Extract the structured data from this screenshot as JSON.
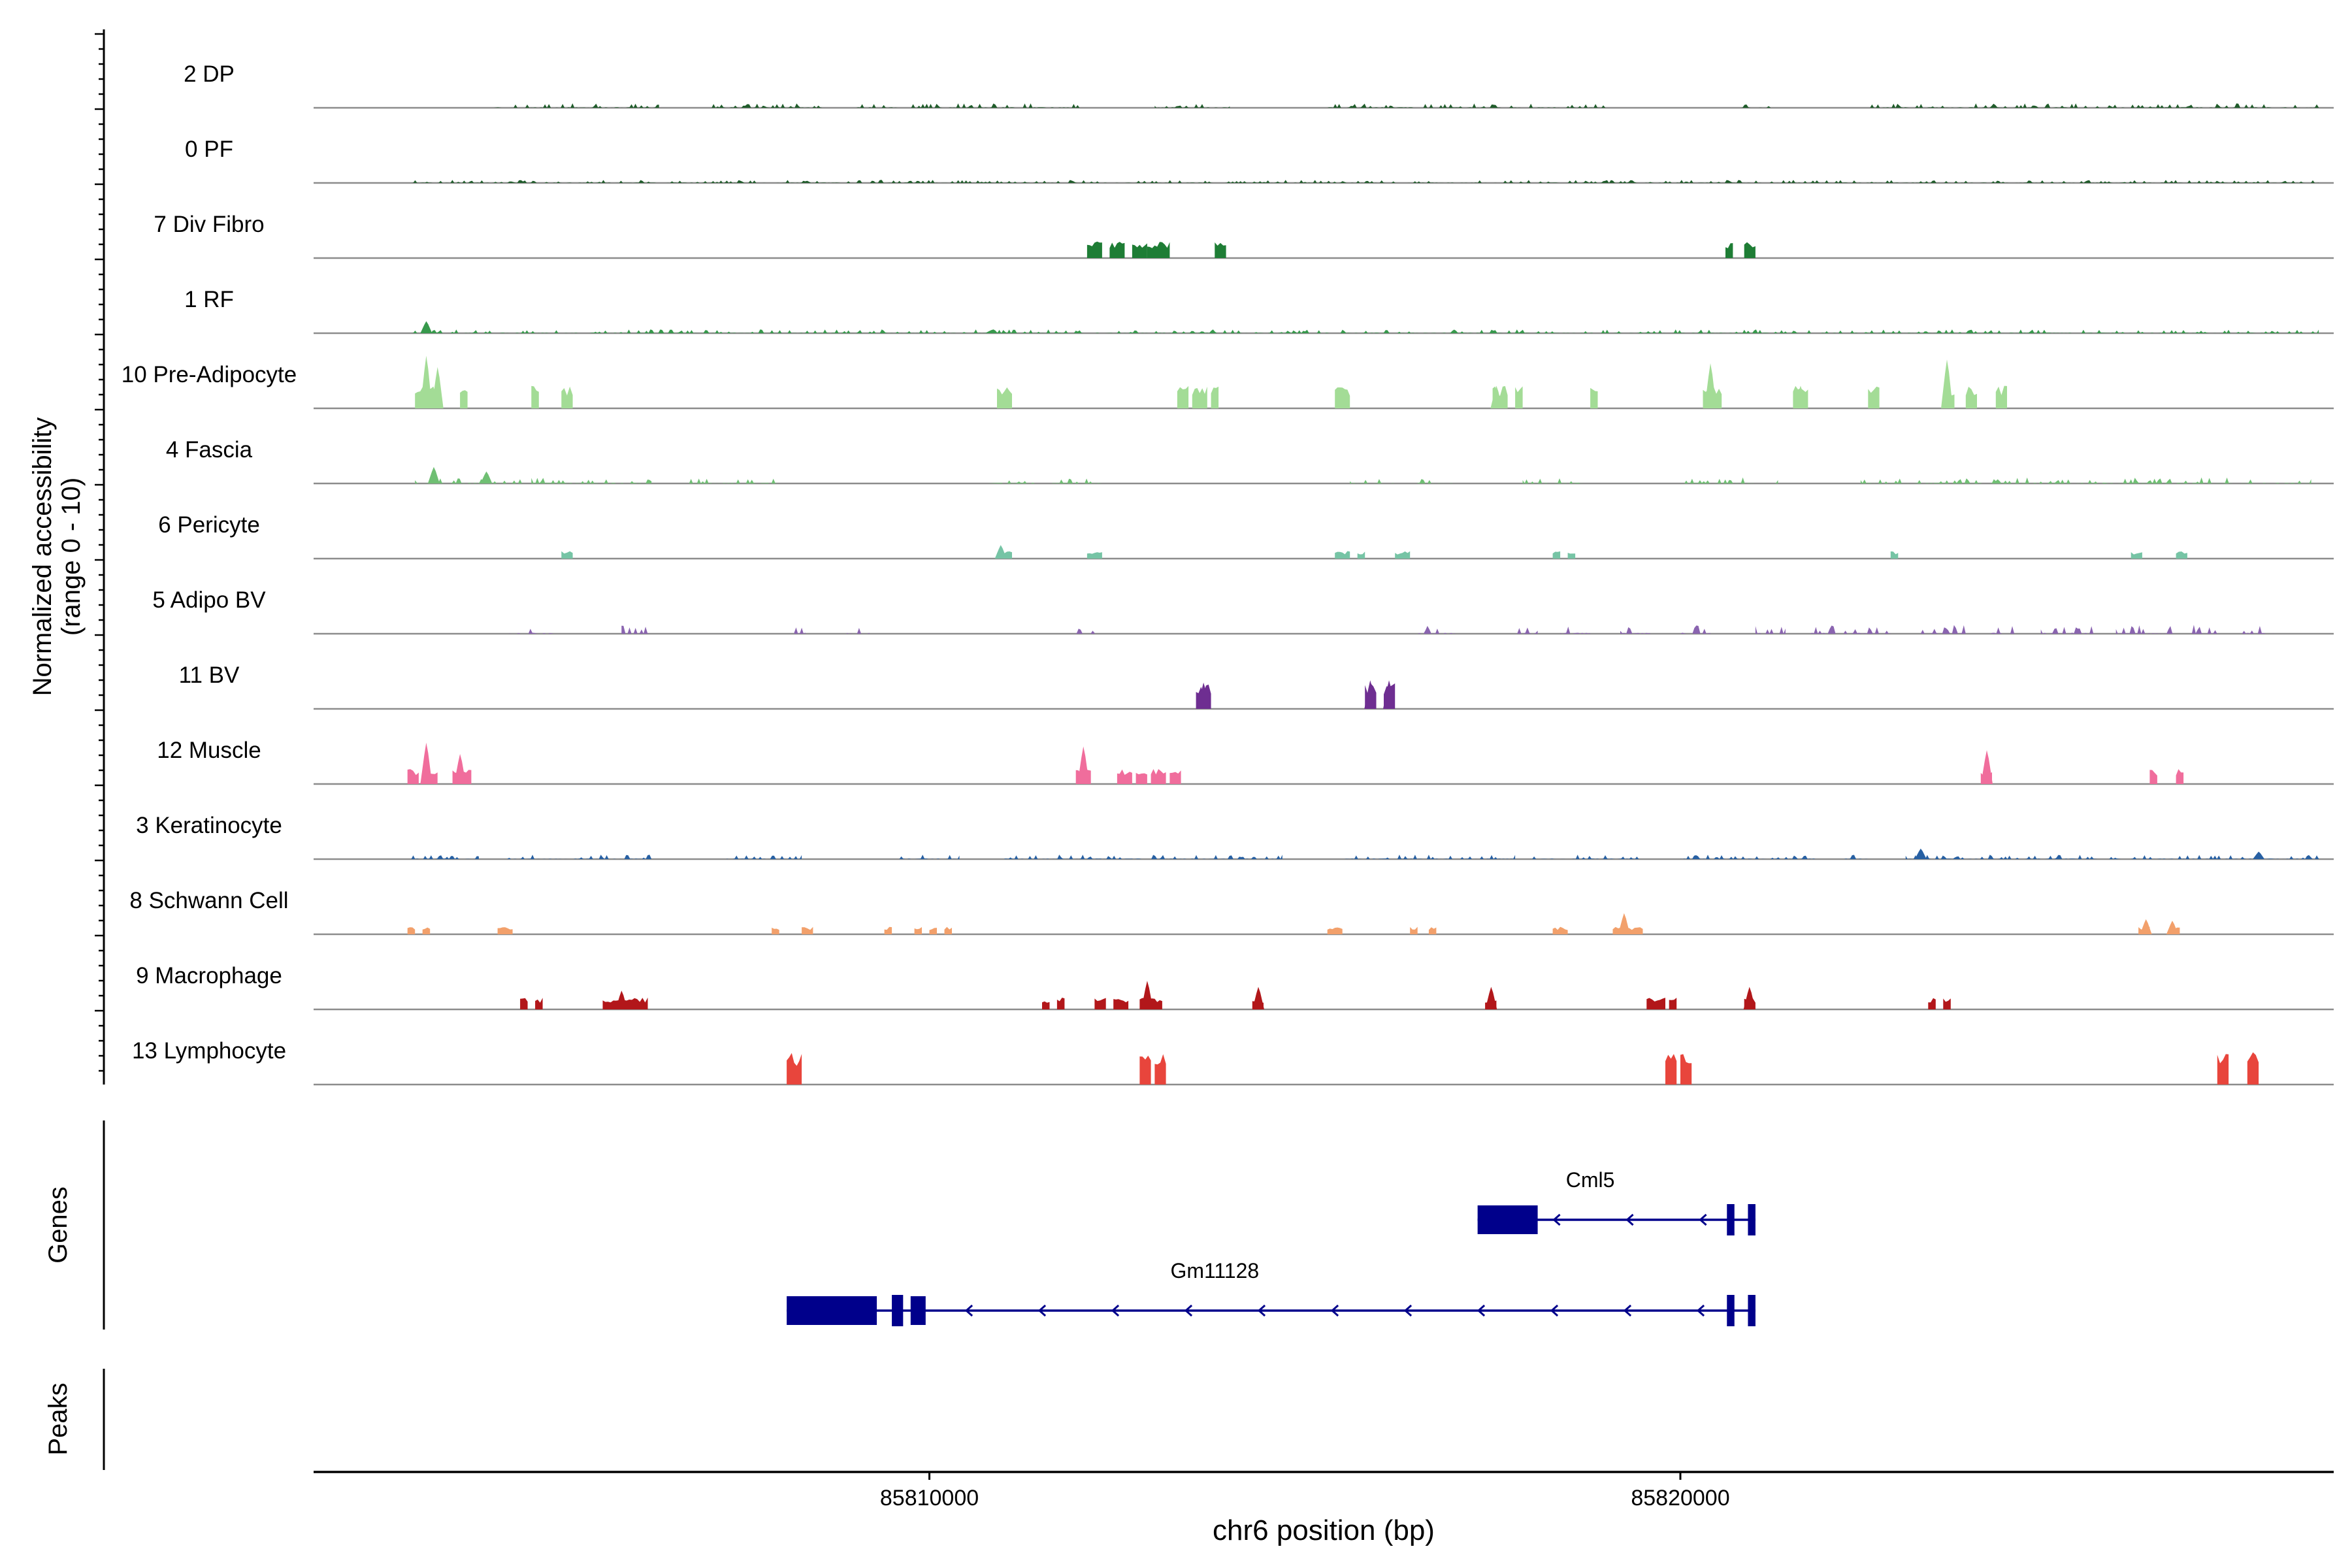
{
  "chart_data": {
    "type": "coverage",
    "y_axis_title_line1": "Normalized accessibility",
    "y_axis_title_line2": "(range 0 - 10)",
    "y_range": [
      0,
      10
    ],
    "genes_label": "Genes",
    "peaks_label": "Peaks",
    "x_axis_title": "chr6 position (bp)",
    "x_range": [
      85801800,
      85828700
    ],
    "x_ticks": [
      {
        "value": 85810000,
        "label": "85810000"
      },
      {
        "value": 85820000,
        "label": "85820000"
      }
    ],
    "tracks": [
      {
        "label": "2 DP",
        "color": "#1f5c2a",
        "pattern": "dense",
        "seed": 3,
        "amp": 0.06,
        "peaks": [
          [
            85804200,
            85806400
          ],
          [
            85807100,
            85808600
          ],
          [
            85809000,
            85812000
          ],
          [
            85813000,
            85814000
          ],
          [
            85815300,
            85819000
          ],
          [
            85820800,
            85821200
          ],
          [
            85822500,
            85828500
          ]
        ]
      },
      {
        "label": "0 PF",
        "color": "#1f5c2a",
        "pattern": "dense",
        "seed": 7,
        "amp": 0.04,
        "peaks": [
          [
            85803100,
            85828500
          ]
        ]
      },
      {
        "label": "7 Div Fibro",
        "color": "#1e7d35",
        "pattern": "blocks",
        "seed": 11,
        "amp": 0.22,
        "peaks": [
          [
            85812100,
            85812300
          ],
          [
            85812400,
            85812600
          ],
          [
            85812700,
            85812900
          ],
          [
            85812900,
            85813200
          ],
          [
            85813800,
            85813950
          ],
          [
            85820600,
            85820700
          ],
          [
            85820850,
            85821000
          ]
        ]
      },
      {
        "label": "1 RF",
        "color": "#37994c",
        "pattern": "dense",
        "seed": 13,
        "amp": 0.05,
        "peaks": [
          [
            85803100,
            85828500
          ]
        ],
        "spikes": [
          [
            85803300,
            0.16
          ]
        ]
      },
      {
        "label": "10 Pre-Adipocyte",
        "color": "#a3dc96",
        "pattern": "blocks",
        "seed": 17,
        "amp": 0.3,
        "peaks": [
          [
            85803150,
            85803500
          ],
          [
            85803750,
            85803850
          ],
          [
            85804700,
            85804800
          ],
          [
            85805100,
            85805250
          ],
          [
            85810900,
            85811100
          ],
          [
            85813300,
            85813450
          ],
          [
            85813500,
            85813700
          ],
          [
            85813750,
            85813850
          ],
          [
            85815400,
            85815600
          ],
          [
            85817500,
            85817700
          ],
          [
            85817800,
            85817900
          ],
          [
            85818800,
            85818900
          ],
          [
            85820300,
            85820550
          ],
          [
            85821500,
            85821700
          ],
          [
            85822500,
            85822650
          ],
          [
            85823500,
            85823650
          ],
          [
            85823800,
            85823950
          ],
          [
            85824200,
            85824350
          ]
        ],
        "spikes": [
          [
            85803300,
            0.7
          ],
          [
            85803450,
            0.55
          ],
          [
            85820400,
            0.6
          ],
          [
            85823550,
            0.65
          ],
          [
            85817550,
            0.3
          ],
          [
            85821600,
            0.3
          ]
        ]
      },
      {
        "label": "4 Fascia",
        "color": "#6fbf73",
        "pattern": "dense",
        "seed": 19,
        "amp": 0.08,
        "peaks": [
          [
            85803150,
            85804600
          ],
          [
            85804700,
            85806300
          ],
          [
            85806800,
            85808000
          ],
          [
            85810700,
            85811400
          ],
          [
            85811600,
            85812300
          ],
          [
            85815600,
            85816300
          ],
          [
            85816500,
            85817000
          ],
          [
            85817900,
            85818700
          ],
          [
            85820000,
            85821300
          ],
          [
            85822400,
            85828400
          ]
        ],
        "spikes": [
          [
            85803400,
            0.22
          ],
          [
            85804100,
            0.16
          ]
        ]
      },
      {
        "label": "6 Pericyte",
        "color": "#76c4a5",
        "pattern": "blocks",
        "seed": 23,
        "amp": 0.1,
        "peaks": [
          [
            85805100,
            85805250
          ],
          [
            85810900,
            85811100
          ],
          [
            85812100,
            85812300
          ],
          [
            85815400,
            85815600
          ],
          [
            85815700,
            85815800
          ],
          [
            85816200,
            85816400
          ],
          [
            85818300,
            85818400
          ],
          [
            85818500,
            85818600
          ],
          [
            85822800,
            85822900
          ],
          [
            85826000,
            85826150
          ],
          [
            85826600,
            85826750
          ]
        ],
        "spikes": [
          [
            85810950,
            0.18
          ]
        ]
      },
      {
        "label": "5 Adipo BV",
        "color": "#8a64b0",
        "pattern": "dense",
        "seed": 29,
        "amp": 0.12,
        "peaks": [
          [
            85804400,
            85805000
          ],
          [
            85805900,
            85806300
          ],
          [
            85808200,
            85808350
          ],
          [
            85808900,
            85809200
          ],
          [
            85811800,
            85812200
          ],
          [
            85816500,
            85817000
          ],
          [
            85817800,
            85818100
          ],
          [
            85818400,
            85818800
          ],
          [
            85819200,
            85819600
          ],
          [
            85820000,
            85820400
          ],
          [
            85821000,
            85821400
          ],
          [
            85821700,
            85822800
          ],
          [
            85823200,
            85823800
          ],
          [
            85824100,
            85824500
          ],
          [
            85824800,
            85825500
          ],
          [
            85825800,
            85827200
          ],
          [
            85827400,
            85827900
          ]
        ]
      },
      {
        "label": "11 BV",
        "color": "#6e2e91",
        "pattern": "blocks",
        "seed": 31,
        "amp": 0.35,
        "peaks": [
          [
            85813550,
            85813750
          ],
          [
            85815800,
            85815950
          ],
          [
            85816050,
            85816200
          ]
        ],
        "spikes": [
          [
            85813650,
            0.35
          ],
          [
            85815870,
            0.38
          ],
          [
            85816120,
            0.38
          ]
        ]
      },
      {
        "label": "12 Muscle",
        "color": "#f06d9c",
        "pattern": "blocks",
        "seed": 37,
        "amp": 0.2,
        "peaks": [
          [
            85803050,
            85803200
          ],
          [
            85803250,
            85803450
          ],
          [
            85803650,
            85803900
          ],
          [
            85811950,
            85812150
          ],
          [
            85812500,
            85812700
          ],
          [
            85812750,
            85812900
          ],
          [
            85812950,
            85813150
          ],
          [
            85813200,
            85813350
          ],
          [
            85824000,
            85824150
          ],
          [
            85826250,
            85826350
          ],
          [
            85826600,
            85826700
          ]
        ],
        "spikes": [
          [
            85803300,
            0.55
          ],
          [
            85803750,
            0.4
          ],
          [
            85812050,
            0.5
          ],
          [
            85824080,
            0.45
          ]
        ]
      },
      {
        "label": "3 Keratinocyte",
        "color": "#2760a3",
        "pattern": "dense",
        "seed": 41,
        "amp": 0.06,
        "peaks": [
          [
            85803100,
            85804000
          ],
          [
            85804300,
            85806300
          ],
          [
            85807300,
            85808300
          ],
          [
            85809600,
            85810400
          ],
          [
            85811000,
            85814700
          ],
          [
            85815500,
            85817800
          ],
          [
            85818000,
            85819500
          ],
          [
            85820000,
            85821800
          ],
          [
            85822100,
            85822500
          ],
          [
            85823000,
            85828500
          ]
        ],
        "spikes": [
          [
            85823200,
            0.14
          ],
          [
            85827700,
            0.1
          ]
        ]
      },
      {
        "label": "8 Schwann Cell",
        "color": "#f2a06b",
        "pattern": "blocks",
        "seed": 43,
        "amp": 0.1,
        "peaks": [
          [
            85803050,
            85803150
          ],
          [
            85803250,
            85803350
          ],
          [
            85804250,
            85804450
          ],
          [
            85807900,
            85808000
          ],
          [
            85808300,
            85808450
          ],
          [
            85809400,
            85809500
          ],
          [
            85809800,
            85809900
          ],
          [
            85810000,
            85810100
          ],
          [
            85810200,
            85810300
          ],
          [
            85815300,
            85815500
          ],
          [
            85816400,
            85816500
          ],
          [
            85816650,
            85816750
          ],
          [
            85818300,
            85818500
          ],
          [
            85819100,
            85819500
          ],
          [
            85826100,
            85826250
          ],
          [
            85826500,
            85826650
          ]
        ],
        "spikes": [
          [
            85819250,
            0.28
          ],
          [
            85826200,
            0.2
          ],
          [
            85826550,
            0.18
          ]
        ]
      },
      {
        "label": "9 Macrophage",
        "color": "#b2171a",
        "pattern": "blocks",
        "seed": 47,
        "amp": 0.16,
        "peaks": [
          [
            85804550,
            85804650
          ],
          [
            85804750,
            85804850
          ],
          [
            85805650,
            85806250
          ],
          [
            85811500,
            85811600
          ],
          [
            85811700,
            85811800
          ],
          [
            85812200,
            85812350
          ],
          [
            85812450,
            85812650
          ],
          [
            85812800,
            85813100
          ],
          [
            85814300,
            85814450
          ],
          [
            85817400,
            85817550
          ],
          [
            85819550,
            85819800
          ],
          [
            85819850,
            85819950
          ],
          [
            85820850,
            85821000
          ],
          [
            85823300,
            85823400
          ],
          [
            85823500,
            85823600
          ]
        ],
        "spikes": [
          [
            85805900,
            0.25
          ],
          [
            85812900,
            0.38
          ],
          [
            85814380,
            0.3
          ],
          [
            85817480,
            0.3
          ],
          [
            85820920,
            0.3
          ]
        ]
      },
      {
        "label": "13 Lymphocyte",
        "color": "#e8453c",
        "pattern": "blocks",
        "seed": 53,
        "amp": 0.43,
        "peaks": [
          [
            85808100,
            85808300
          ],
          [
            85812800,
            85812950
          ],
          [
            85813000,
            85813150
          ],
          [
            85819800,
            85819950
          ],
          [
            85820000,
            85820150
          ],
          [
            85827150,
            85827300
          ],
          [
            85827550,
            85827700
          ]
        ]
      }
    ],
    "genes": [
      {
        "name": "Cml5",
        "row": 1,
        "strand": "-",
        "start": 85817300,
        "end": 85821000,
        "exons": [
          [
            85817300,
            85818100
          ],
          [
            85820620,
            85820720
          ],
          [
            85820900,
            85821000
          ]
        ],
        "color": "#00008b"
      },
      {
        "name": "Gm11128",
        "row": 2,
        "strand": "-",
        "start": 85808100,
        "end": 85821000,
        "exons": [
          [
            85808100,
            85809300
          ],
          [
            85809500,
            85809650
          ],
          [
            85809750,
            85809950
          ],
          [
            85820620,
            85820720
          ],
          [
            85820900,
            85821000
          ]
        ],
        "color": "#00008b"
      }
    ],
    "peaks_track": []
  }
}
